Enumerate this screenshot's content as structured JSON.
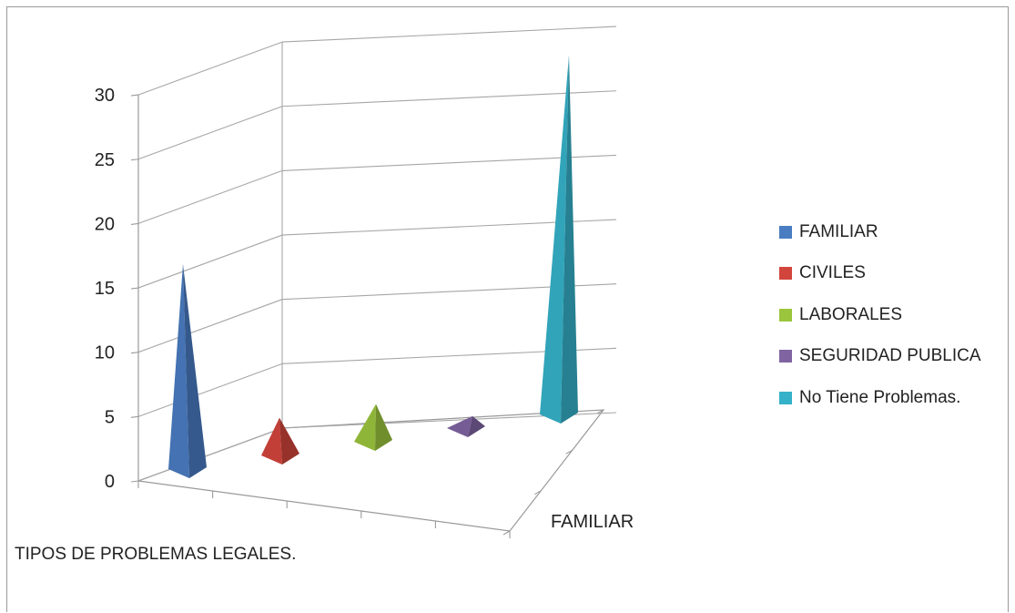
{
  "chart_data": {
    "type": "bar",
    "style": "3d-pyramid",
    "title": "",
    "xlabel": "TIPOS DE PROBLEMAS LEGALES.",
    "depth_label": "FAMILIAR",
    "ylabel": "",
    "ylim": [
      0,
      30
    ],
    "yticks": [
      "0",
      "5",
      "10",
      "15",
      "20",
      "25",
      "30"
    ],
    "grid": true,
    "legend_position": "right",
    "series": [
      {
        "name": "FAMILIAR",
        "value": 16,
        "color": "#4a7cc2"
      },
      {
        "name": "CIVILES",
        "value": 3,
        "color": "#d2453c"
      },
      {
        "name": "LABORALES",
        "value": 3,
        "color": "#9bc53d"
      },
      {
        "name": "SEGURIDAD PUBLICA",
        "value": 1,
        "color": "#8064a2"
      },
      {
        "name": "No Tiene Problemas.",
        "value": 28,
        "color": "#35b2c9"
      }
    ]
  }
}
